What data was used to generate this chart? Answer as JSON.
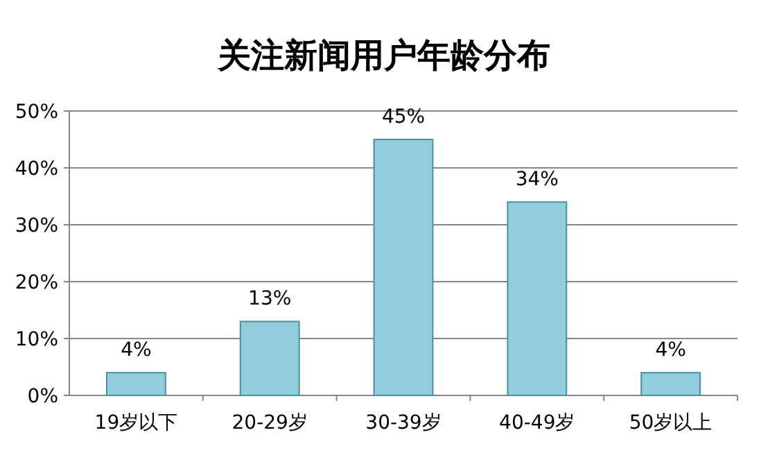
{
  "chart_data": {
    "type": "bar",
    "title": "关注新闻用户年龄分布",
    "categories": [
      "19岁以下",
      "20-29岁",
      "30-39岁",
      "40-49岁",
      "50岁以上"
    ],
    "values": [
      4,
      13,
      45,
      34,
      4
    ],
    "value_labels": [
      "4%",
      "13%",
      "45%",
      "34%",
      "4%"
    ],
    "color": "#92cddc",
    "ylim": [
      0,
      50
    ],
    "yticks": [
      {
        "value": 0,
        "label": "0%"
      },
      {
        "value": 10,
        "label": "10%"
      },
      {
        "value": 20,
        "label": "20%"
      },
      {
        "value": 30,
        "label": "30%"
      },
      {
        "value": 40,
        "label": "40%"
      },
      {
        "value": 50,
        "label": "50%"
      }
    ],
    "grid": "y"
  }
}
